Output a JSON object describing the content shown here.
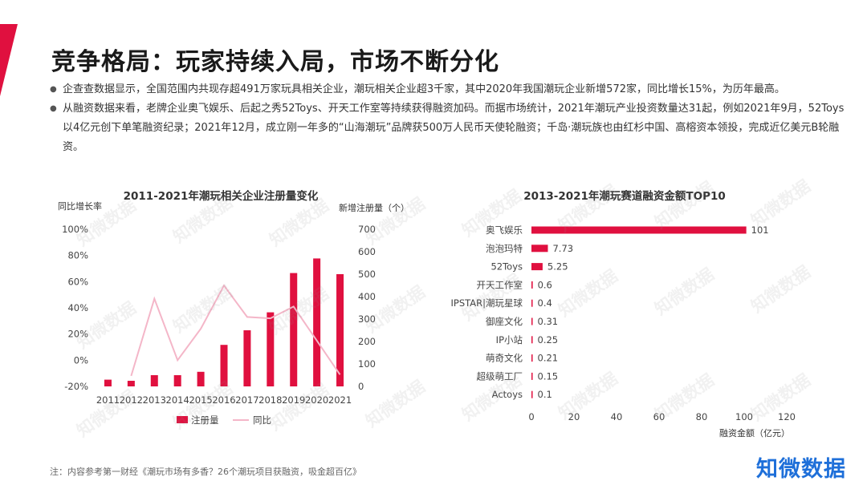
{
  "page": {
    "title": "竞争格局：玩家持续入局，市场不断分化",
    "bullets": [
      "企查查数据显示，全国范围内共现存超491万家玩具相关企业，潮玩相关企业超3千家，其中2020年我国潮玩企业新增572家，同比增长15%，为历年最高。",
      "从融资数据来看，老牌企业奥飞娱乐、后起之秀52Toys、开天工作室等持续获得融资加码。而据市场统计，2021年潮玩产业投资数量达31起，例如2021年9月，52Toys以4亿元创下单笔融资纪录；2021年12月，成立刚一年多的“山海潮玩”品牌获500万人民币天使轮融资；千岛·潮玩族也由红杉中国、高榕资本领投，完成近亿美元B轮融资。"
    ],
    "footer_note": "注：内容参考第一财经《潮玩市场有多香？26个潮玩项目获融资，吸金超百亿》",
    "brand": "知微数据",
    "watermark": "知微数据",
    "colors": {
      "accent": "#e0103f",
      "line": "#f4b6c8",
      "brand": "#1e6fd9"
    }
  },
  "chart_data": [
    {
      "type": "bar+line",
      "title": "2011-2021年潮玩相关企业注册量变化",
      "categories": [
        "2011",
        "2012",
        "2013",
        "2014",
        "2015",
        "2016",
        "2017",
        "2018",
        "2019",
        "2020",
        "2021"
      ],
      "series": [
        {
          "name": "注册量",
          "type": "bar",
          "axis": "right",
          "color": "#e0103f",
          "values": [
            30,
            25,
            50,
            50,
            65,
            185,
            250,
            330,
            505,
            570,
            500
          ]
        },
        {
          "name": "同比",
          "type": "line",
          "axis": "left",
          "color": "#f4b6c8",
          "values": [
            null,
            -12,
            47,
            0,
            24,
            57,
            33,
            32,
            41,
            15,
            -11
          ]
        }
      ],
      "yleft": {
        "label": "同比增长率",
        "ticks": [
          "100%",
          "80%",
          "60%",
          "40%",
          "20%",
          "0%",
          "-20%"
        ],
        "min": -20,
        "max": 100
      },
      "yright": {
        "label": "新增注册量（个）",
        "ticks": [
          "700",
          "600",
          "500",
          "400",
          "300",
          "200",
          "100",
          "0"
        ],
        "min": 0,
        "max": 700
      },
      "legend": "bottom"
    },
    {
      "type": "bar",
      "orientation": "horizontal",
      "title": "2013-2021年潮玩赛道融资金额TOP10",
      "categories": [
        "奥飞娱乐",
        "泡泡玛特",
        "52Toys",
        "开天工作室",
        "IPSTAR|潮玩星球",
        "御座文化",
        "IP小站",
        "萌奇文化",
        "超级萌工厂",
        "Actoys"
      ],
      "values": [
        101,
        7.73,
        5.25,
        0.6,
        0.4,
        0.31,
        0.25,
        0.21,
        0.15,
        0.1
      ],
      "value_labels": [
        "101",
        "7.73",
        "5.25",
        "0.6",
        "0.4",
        "0.31",
        "0.25",
        "0.21",
        "0.15",
        "0.1"
      ],
      "xlim": [
        0,
        120
      ],
      "xticks": [
        "0",
        "20",
        "40",
        "60",
        "80",
        "100",
        "120"
      ],
      "xlabel": "融资金额（亿元）",
      "color": "#e0103f"
    }
  ]
}
